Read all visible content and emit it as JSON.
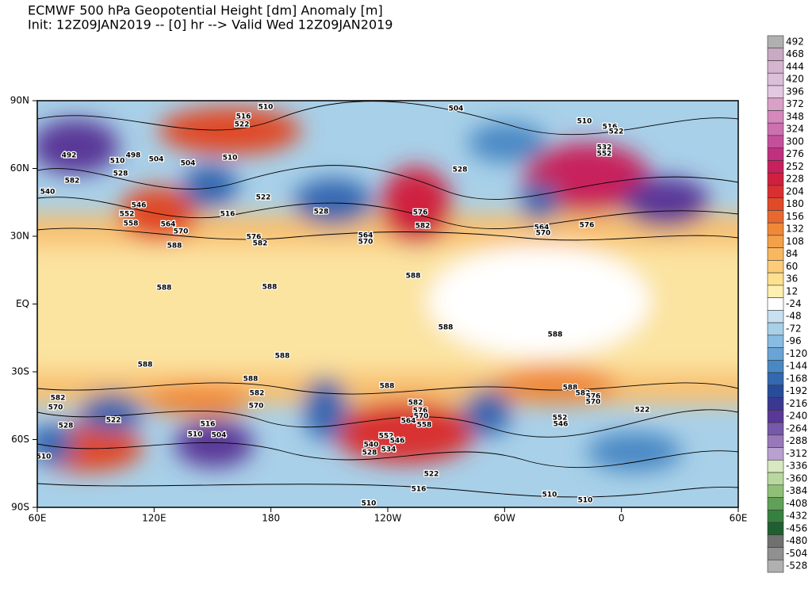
{
  "header": {
    "title": "ECMWF 500 hPa Geopotential Height [dm] Anomaly [m]",
    "subtitle": "Init: 12Z09JAN2019 -- [0] hr --> Valid Wed 12Z09JAN2019"
  },
  "map": {
    "lat_labels": [
      "90N",
      "60N",
      "30N",
      "EQ",
      "30S",
      "60S",
      "90S"
    ],
    "lon_labels": [
      "60E",
      "120E",
      "180",
      "120W",
      "60W",
      "0",
      "60E"
    ],
    "contour_labels": [
      510,
      504,
      516,
      522,
      510,
      516,
      522,
      552,
      532,
      492,
      498,
      504,
      504,
      510,
      510,
      528,
      582,
      540,
      546,
      552,
      558,
      564,
      570,
      522,
      516,
      528,
      576,
      582,
      588,
      588,
      588,
      588,
      588,
      576,
      564,
      570,
      564,
      570,
      528,
      576,
      582,
      588,
      588,
      588,
      588,
      588,
      582,
      570,
      582,
      570,
      528,
      522,
      510,
      504,
      516,
      582,
      576,
      570,
      564,
      558,
      552,
      546,
      540,
      534,
      528,
      522,
      516,
      510,
      510,
      510,
      588,
      582,
      576,
      570,
      552,
      546,
      522,
      510
    ]
  },
  "colorbar": {
    "labels": [
      492,
      468,
      444,
      420,
      396,
      372,
      348,
      324,
      300,
      276,
      252,
      228,
      204,
      180,
      156,
      132,
      108,
      84,
      60,
      36,
      12,
      -24,
      -48,
      -72,
      -96,
      -120,
      -144,
      -168,
      -192,
      -216,
      -240,
      -264,
      -288,
      -312,
      -336,
      -360,
      -384,
      -408,
      -432,
      -456,
      -480,
      -504,
      -528
    ],
    "colors": [
      "#b0b0b0",
      "#c9a9c4",
      "#d4b4cf",
      "#dcbfd8",
      "#e4c8e0",
      "#d9a0c8",
      "#d488bc",
      "#cc70b0",
      "#c4509c",
      "#c03080",
      "#c8205c",
      "#d02040",
      "#d83030",
      "#e04a28",
      "#e86830",
      "#f08838",
      "#f4a048",
      "#f8b860",
      "#fccc78",
      "#fde090",
      "#fdf0b0",
      "#ffffff",
      "#c8e0f0",
      "#a8d0e8",
      "#88bce0",
      "#6aa4d4",
      "#4a88c4",
      "#3468b0",
      "#284c98",
      "#3a3890",
      "#5a3898",
      "#7858a8",
      "#9878b8",
      "#b8a0d0",
      "#d8e8c0",
      "#b8d8a0",
      "#90c078",
      "#60a058",
      "#388040",
      "#206030",
      "#707070",
      "#909090",
      "#b0b0b0"
    ]
  }
}
